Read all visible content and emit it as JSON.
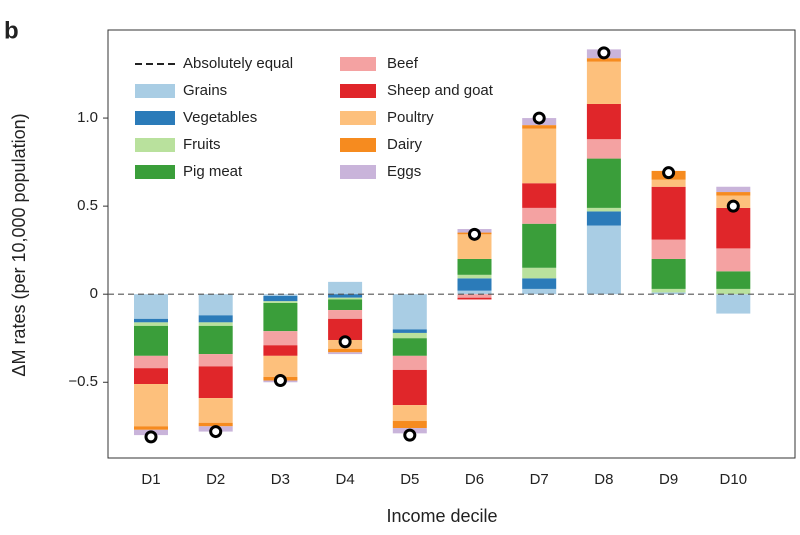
{
  "chart_data": {
    "type": "stacked_bar",
    "panel_label": "b",
    "y_label": "ΔM rates (per 10,000 population)",
    "x_label": "Income decile",
    "categories": [
      "D1",
      "D2",
      "D3",
      "D4",
      "D5",
      "D6",
      "D7",
      "D8",
      "D9",
      "D10"
    ],
    "ylim": [
      -0.93,
      1.5
    ],
    "yticks": [
      {
        "value": -0.5,
        "label": "−0.5"
      },
      0,
      0.5,
      {
        "value": 1,
        "label": "1.0"
      }
    ],
    "reference_line": {
      "label": "Absolutely equal",
      "value": 0
    },
    "series": [
      {
        "name": "Grains",
        "color": "#a9cde4",
        "values": [
          -0.14,
          -0.12,
          -0.01,
          0.07,
          -0.2,
          0.02,
          0.03,
          0.39,
          0.01,
          -0.11
        ]
      },
      {
        "name": "Vegetables",
        "color": "#2b7bb9",
        "values": [
          -0.02,
          -0.04,
          -0.03,
          -0.02,
          -0.02,
          0.07,
          0.06,
          0.08,
          0,
          0
        ]
      },
      {
        "name": "Fruits",
        "color": "#b9e19d",
        "values": [
          -0.02,
          -0.02,
          -0.01,
          -0.01,
          -0.03,
          0.02,
          0.06,
          0.02,
          0.02,
          0.03
        ]
      },
      {
        "name": "Pig meat",
        "color": "#3a9e3a",
        "values": [
          -0.17,
          -0.16,
          -0.16,
          -0.06,
          -0.1,
          0.09,
          0.25,
          0.28,
          0.17,
          0.1
        ]
      },
      {
        "name": "Beef",
        "color": "#f4a2a2",
        "values": [
          -0.07,
          -0.07,
          -0.08,
          -0.05,
          -0.08,
          -0.02,
          0.09,
          0.11,
          0.11,
          0.13
        ]
      },
      {
        "name": "Sheep and goat",
        "color": "#e0262a",
        "values": [
          -0.09,
          -0.18,
          -0.06,
          -0.12,
          -0.2,
          -0.01,
          0.14,
          0.2,
          0.3,
          0.23
        ]
      },
      {
        "name": "Poultry",
        "color": "#fdc07c",
        "values": [
          -0.24,
          -0.14,
          -0.12,
          -0.05,
          -0.09,
          0.14,
          0.31,
          0.24,
          0.04,
          0.07
        ]
      },
      {
        "name": "Dairy",
        "color": "#f68b1f",
        "values": [
          -0.02,
          -0.02,
          -0.02,
          -0.02,
          -0.04,
          0.01,
          0.02,
          0.02,
          0.05,
          0.02
        ]
      },
      {
        "name": "Eggs",
        "color": "#c9b4da",
        "values": [
          -0.03,
          -0.03,
          -0.01,
          -0.01,
          -0.03,
          0.02,
          0.04,
          0.05,
          0,
          0.03
        ]
      }
    ],
    "net": [
      -0.81,
      -0.78,
      -0.49,
      -0.27,
      -0.8,
      0.34,
      1.0,
      1.37,
      0.69,
      0.5
    ]
  }
}
